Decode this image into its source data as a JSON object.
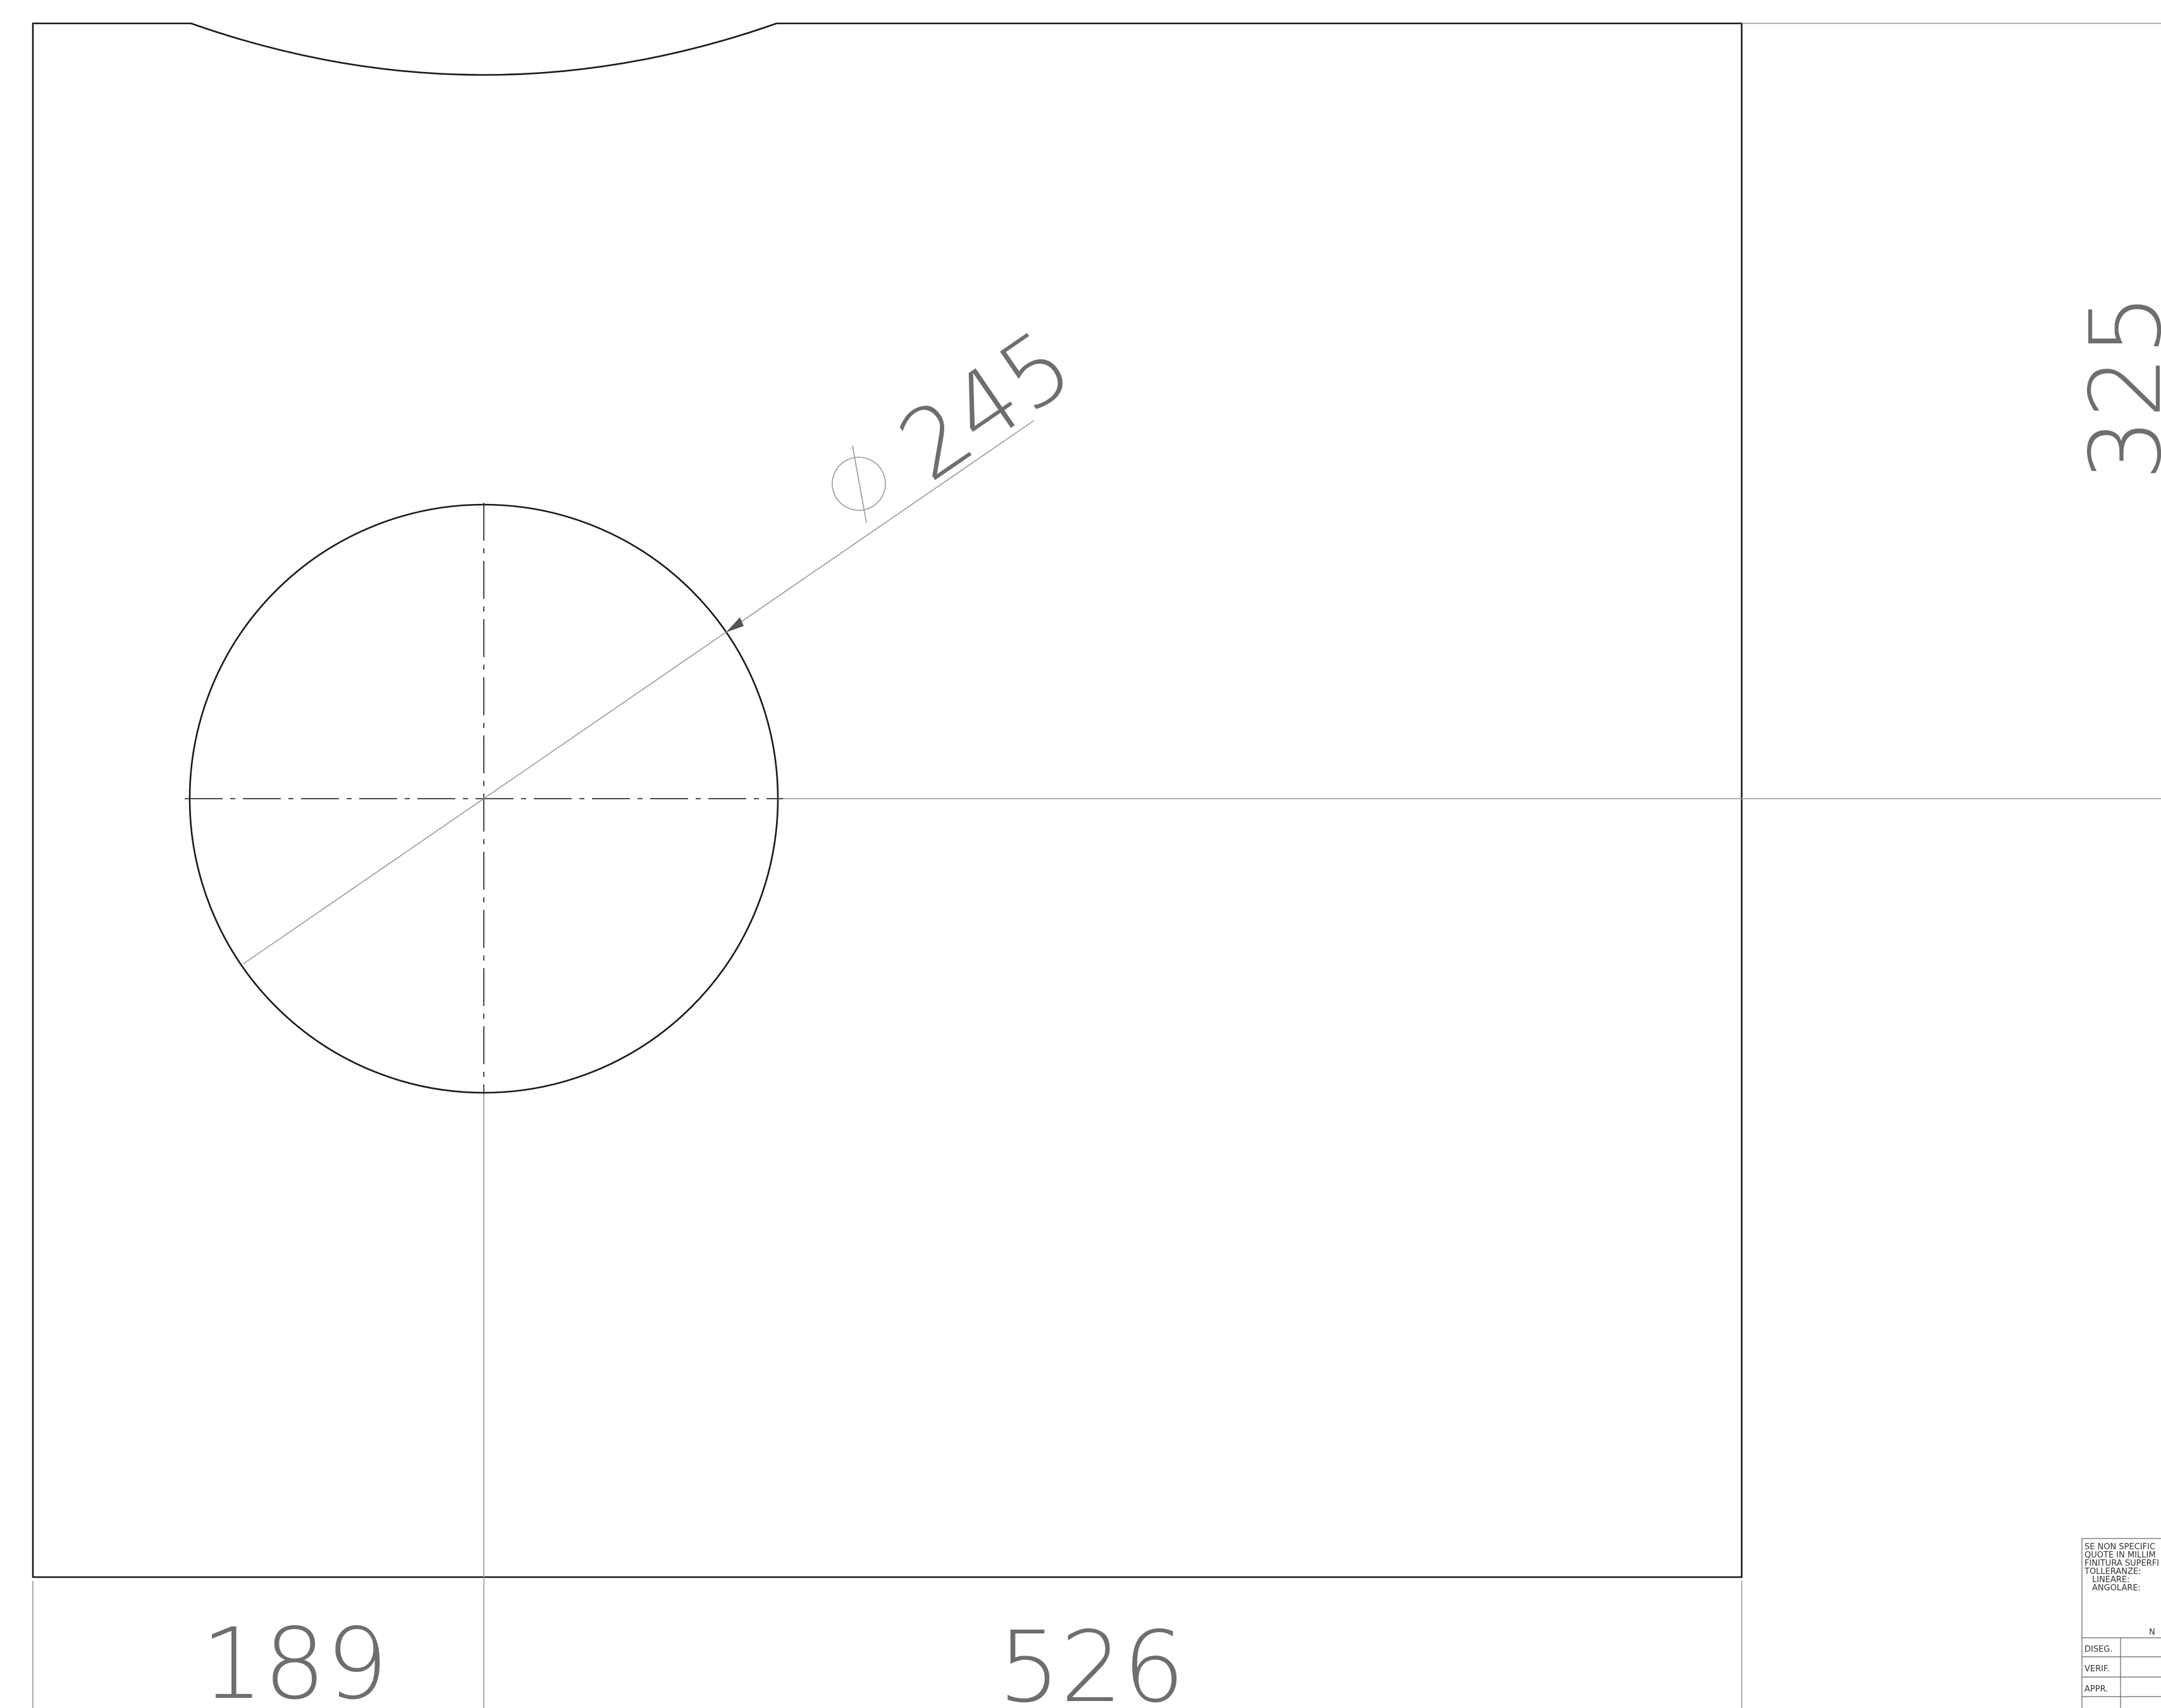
{
  "drawing": {
    "dimensions": {
      "hole_diameter": "245",
      "right_vertical": "325",
      "bottom_left": "189",
      "bottom_right": "526"
    },
    "title_block": {
      "notes": [
        "SE NON SPECIFIC",
        "QUOTE IN MILLIM",
        "FINITURA SUPERFI",
        "TOLLERANZE:",
        "LINEARE:",
        "ANGOLARE:"
      ],
      "column_header": "N",
      "rows": [
        "DISEG.",
        "VERIF.",
        "APPR."
      ]
    },
    "colors": {
      "outline": "#1a1a1a",
      "dimension": "#6e6e6e",
      "background": "#ffffff"
    }
  }
}
